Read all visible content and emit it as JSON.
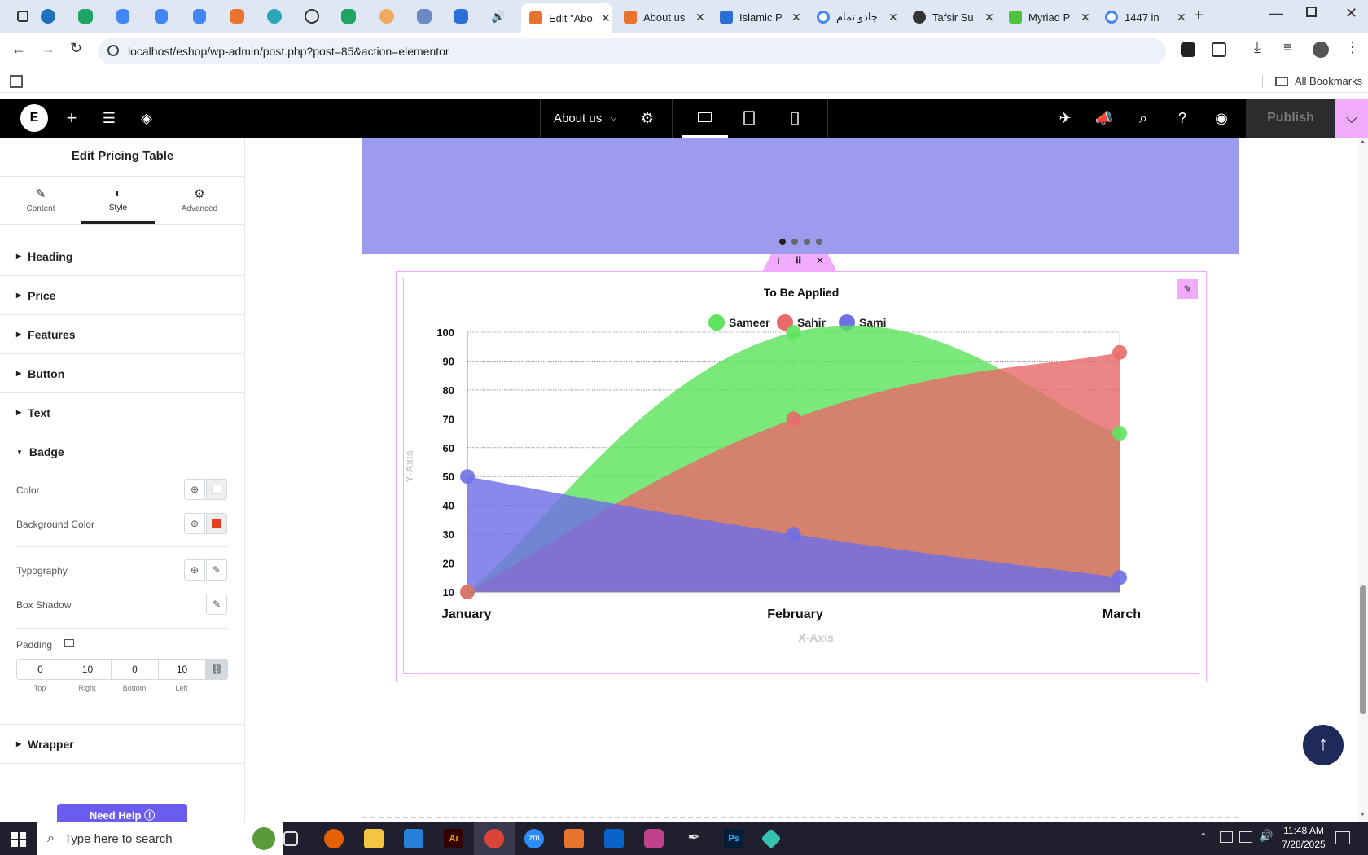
{
  "browser": {
    "tabs": [
      {
        "title": "Edit \"Abo",
        "active": true
      },
      {
        "title": "About us"
      },
      {
        "title": "Islamic P"
      },
      {
        "title": "جادو تمام"
      },
      {
        "title": "Tafsir Su"
      },
      {
        "title": "Myriad P"
      },
      {
        "title": "1447 in"
      }
    ],
    "url": "localhost/eshop/wp-admin/post.php?post=85&action=elementor",
    "all_bookmarks": "All Bookmarks"
  },
  "elementor": {
    "page_name": "About us",
    "publish_label": "Publish"
  },
  "panel": {
    "title": "Edit Pricing Table",
    "tabs": [
      {
        "label": "Content",
        "icon": "pencil-icon"
      },
      {
        "label": "Style",
        "icon": "half-circle-icon"
      },
      {
        "label": "Advanced",
        "icon": "gear-icon"
      }
    ],
    "sections": [
      "Heading",
      "Price",
      "Features",
      "Button",
      "Text"
    ],
    "badge": {
      "title": "Badge",
      "color_label": "Color",
      "bg_color_label": "Background Color",
      "typography_label": "Typography",
      "box_shadow_label": "Box Shadow",
      "padding_label": "Padding",
      "padding": {
        "top": "0",
        "right": "10",
        "bottom": "0",
        "left": "10"
      },
      "padding_captions": {
        "top": "Top",
        "right": "Right",
        "bottom": "Bottom",
        "left": "Left"
      },
      "color_value": "#ffffff",
      "bg_color_value": "#e2401c"
    },
    "wrapper_label": "Wrapper",
    "need_help": "Need Help"
  },
  "chart_data": {
    "type": "area",
    "title": "To Be Applied",
    "xlabel": "X-Axis",
    "ylabel": "Y-Axis",
    "categories": [
      "January",
      "February",
      "March"
    ],
    "y_ticks": [
      "100",
      "90",
      "80",
      "70",
      "60",
      "50",
      "40",
      "30",
      "20",
      "10"
    ],
    "ylim": [
      10,
      100
    ],
    "legend": "top-center",
    "series": [
      {
        "name": "Sameer",
        "values": [
          10,
          100,
          65
        ],
        "color": "#5ee35e"
      },
      {
        "name": "Sahir",
        "values": [
          10,
          70,
          93
        ],
        "color": "#e86a6a"
      },
      {
        "name": "Sami",
        "values": [
          50,
          30,
          15
        ],
        "color": "#6f6fe6"
      }
    ]
  },
  "taskbar": {
    "search_placeholder": "Type here to search",
    "time": "11:48 AM",
    "date": "7/28/2025"
  }
}
